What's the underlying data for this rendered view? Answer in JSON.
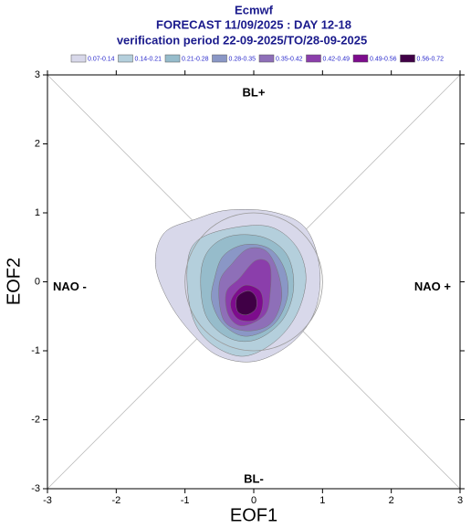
{
  "chart_data": {
    "type": "contour",
    "title": "Ecmwf",
    "subtitle": "FORECAST 11/09/2025 : DAY 12-18",
    "subtitle2": "verification period 22-09-2025/TO/28-09-2025",
    "x_label": "EOF1",
    "y_label": "EOF2",
    "xlim": [
      -3,
      3
    ],
    "ylim": [
      -3,
      3
    ],
    "xticks": [
      -3,
      -2,
      -1,
      0,
      1,
      2,
      3
    ],
    "yticks": [
      -3,
      -2,
      -1,
      0,
      1,
      2,
      3
    ],
    "annotations": [
      "BL+",
      "BL-",
      "NAO -",
      "NAO +"
    ],
    "legend": {
      "labels": [
        "0.07-0.14",
        "0.14-0.21",
        "0.21-0.28",
        "0.28-0.35",
        "0.35-0.42",
        "0.42-0.49",
        "0.49-0.56",
        "0.56-0.72"
      ],
      "colors": [
        "#d8d8ea",
        "#b4cfdc",
        "#96bccb",
        "#8a97c6",
        "#8e6fb8",
        "#8b3eab",
        "#7d0c8d",
        "#400046"
      ]
    },
    "reference_circle": {
      "cx": 0,
      "cy": 0,
      "r": 1
    },
    "contours": [
      {
        "level": 0,
        "x": [
          -1.43,
          -1.3,
          -0.84,
          -0.37,
          0.29,
          0.76,
          0.96,
          0.89,
          0.56,
          0.03,
          -0.5,
          -0.9,
          -1.24
        ],
        "y": [
          0.25,
          0.71,
          0.91,
          1.04,
          1.01,
          0.77,
          0.18,
          -0.42,
          -0.88,
          -1.15,
          -1.08,
          -0.75,
          -0.28
        ]
      },
      {
        "level": 1,
        "x": [
          -0.97,
          -0.84,
          -0.37,
          0.23,
          0.62,
          0.76,
          0.62,
          0.29,
          -0.17,
          -0.64,
          -0.9
        ],
        "y": [
          0.18,
          0.58,
          0.77,
          0.8,
          0.51,
          0.05,
          -0.48,
          -0.88,
          -1.08,
          -0.88,
          -0.48
        ]
      },
      {
        "level": 2,
        "x": [
          -0.77,
          -0.64,
          -0.31,
          0.16,
          0.49,
          0.58,
          0.42,
          0.03,
          -0.37,
          -0.7
        ],
        "y": [
          0.11,
          0.48,
          0.67,
          0.64,
          0.38,
          -0.09,
          -0.55,
          -0.84,
          -0.81,
          -0.48
        ]
      },
      {
        "level": 3,
        "x": [
          -0.57,
          -0.44,
          -0.13,
          0.23,
          0.45,
          0.49,
          0.29,
          -0.11,
          -0.44,
          -0.61
        ],
        "y": [
          0.05,
          0.38,
          0.54,
          0.48,
          0.18,
          -0.22,
          -0.62,
          -0.79,
          -0.62,
          -0.28
        ]
      },
      {
        "level": 4,
        "x": [
          -0.5,
          -0.31,
          -0.08,
          0.19,
          0.36,
          0.4,
          0.23,
          -0.13,
          -0.44
        ],
        "y": [
          -0.02,
          0.27,
          0.48,
          0.44,
          0.11,
          -0.28,
          -0.62,
          -0.71,
          -0.55
        ]
      },
      {
        "level": 5,
        "x": [
          -0.4,
          -0.21,
          0.03,
          0.23,
          0.24,
          0.16,
          -0.17,
          -0.37
        ],
        "y": [
          -0.15,
          0.05,
          0.31,
          0.25,
          -0.15,
          -0.48,
          -0.64,
          -0.48
        ]
      },
      {
        "level": 6,
        "x": [
          -0.31,
          -0.13,
          0.09,
          0.13,
          0.03,
          -0.21,
          -0.33
        ],
        "y": [
          -0.22,
          -0.05,
          -0.13,
          -0.35,
          -0.55,
          -0.55,
          -0.39
        ]
      },
      {
        "level": 7,
        "x": [
          -0.24,
          -0.08,
          0.03,
          0.03,
          -0.11,
          -0.24
        ],
        "y": [
          -0.22,
          -0.13,
          -0.22,
          -0.39,
          -0.48,
          -0.42
        ]
      }
    ]
  }
}
